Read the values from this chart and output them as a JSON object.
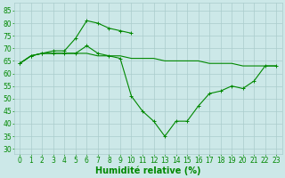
{
  "line1": {
    "x": [
      0,
      1,
      2,
      3,
      4,
      5,
      6,
      7,
      8,
      9,
      10
    ],
    "y": [
      64,
      67,
      68,
      69,
      69,
      74,
      81,
      80,
      78,
      77,
      76
    ],
    "marker": true
  },
  "line2": {
    "x": [
      0,
      1,
      2,
      3,
      4,
      5,
      6,
      7,
      8,
      9,
      10,
      11,
      12,
      13,
      14,
      15,
      16,
      17,
      18,
      19,
      20,
      21,
      22,
      23
    ],
    "y": [
      64,
      67,
      68,
      68,
      68,
      68,
      68,
      67,
      67,
      67,
      66,
      66,
      66,
      65,
      65,
      65,
      65,
      64,
      64,
      64,
      63,
      63,
      63,
      63
    ],
    "marker": false
  },
  "line3": {
    "x": [
      0,
      1,
      2,
      3,
      4,
      5,
      6,
      7,
      8,
      9,
      10,
      11,
      12,
      13,
      14,
      15,
      16,
      17,
      18,
      19,
      20,
      21,
      22,
      23
    ],
    "y": [
      64,
      67,
      68,
      68,
      68,
      68,
      71,
      68,
      67,
      66,
      51,
      45,
      41,
      35,
      41,
      41,
      47,
      52,
      53,
      55,
      54,
      57,
      63,
      63
    ],
    "marker": true
  },
  "xlabel": "Humidité relative (%)",
  "xlim": [
    -0.5,
    23.5
  ],
  "ylim": [
    28,
    88
  ],
  "yticks": [
    30,
    35,
    40,
    45,
    50,
    55,
    60,
    65,
    70,
    75,
    80,
    85
  ],
  "xticks": [
    0,
    1,
    2,
    3,
    4,
    5,
    6,
    7,
    8,
    9,
    10,
    11,
    12,
    13,
    14,
    15,
    16,
    17,
    18,
    19,
    20,
    21,
    22,
    23
  ],
  "bg_color": "#cce8e8",
  "grid_color": "#aacccc",
  "line_color": "#008800",
  "xlabel_color": "#008800",
  "tick_color": "#008800",
  "font_size": 5.5,
  "xlabel_fontsize": 7,
  "linewidth": 0.8,
  "markersize": 3,
  "markeredgewidth": 0.7
}
